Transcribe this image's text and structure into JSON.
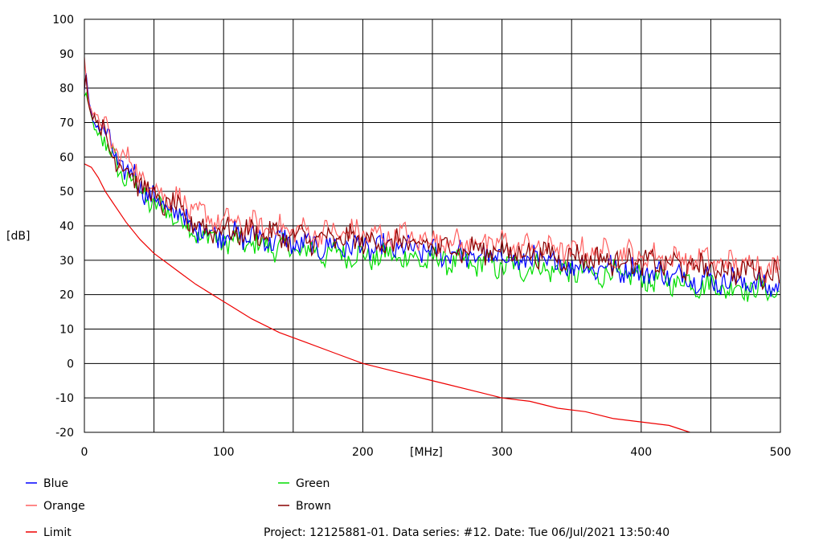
{
  "chart_data": {
    "type": "line",
    "title": "",
    "xlabel": "[MHz]",
    "ylabel": "[dB]",
    "xlim": [
      0,
      500
    ],
    "ylim": [
      -20,
      100
    ],
    "x_ticks": [
      "0",
      "100",
      "200",
      "300",
      "400",
      "500"
    ],
    "y_ticks": [
      "100",
      "90",
      "80",
      "70",
      "60",
      "50",
      "40",
      "30",
      "20",
      "10",
      "0",
      "-10",
      "-20"
    ],
    "grid": true,
    "legend_position": "bottom-left",
    "footer": "Project: 12125881-01. Data series: #12. Date: Tue 06/Jul/2021 13:50:40",
    "series": [
      {
        "name": "Blue",
        "color": "#0000ff",
        "x": [
          0,
          1,
          3,
          6,
          10,
          15,
          20,
          25,
          30,
          35,
          40,
          45,
          50,
          55,
          60,
          65,
          70,
          75,
          80,
          85,
          90,
          95,
          100,
          110,
          120,
          130,
          140,
          150,
          160,
          170,
          180,
          190,
          200,
          210,
          220,
          230,
          240,
          250,
          260,
          270,
          280,
          290,
          300,
          310,
          320,
          330,
          340,
          350,
          360,
          370,
          380,
          390,
          400,
          410,
          420,
          430,
          440,
          450,
          460,
          470,
          480,
          490,
          500
        ],
        "y": [
          79,
          84,
          76,
          72,
          70,
          66,
          62,
          58,
          56,
          55,
          52,
          50,
          48,
          46,
          45,
          44,
          43,
          40,
          39,
          39,
          38,
          38,
          38,
          37,
          37,
          36,
          36,
          35,
          34,
          34,
          34,
          34,
          34,
          33,
          34,
          33,
          33,
          32,
          32,
          32,
          31,
          31,
          31,
          30,
          30,
          30,
          29,
          29,
          28,
          28,
          28,
          27,
          27,
          26,
          26,
          25,
          25,
          24,
          24,
          24,
          23,
          23,
          22
        ]
      },
      {
        "name": "Orange",
        "color": "#ff6060",
        "x": [
          0,
          1,
          3,
          6,
          10,
          15,
          20,
          25,
          30,
          35,
          40,
          45,
          50,
          55,
          60,
          65,
          70,
          75,
          80,
          85,
          90,
          95,
          100,
          110,
          120,
          130,
          140,
          150,
          160,
          170,
          180,
          190,
          200,
          210,
          220,
          230,
          240,
          250,
          260,
          270,
          280,
          290,
          300,
          310,
          320,
          330,
          340,
          350,
          360,
          370,
          380,
          390,
          400,
          410,
          420,
          430,
          440,
          450,
          460,
          470,
          480,
          490,
          500
        ],
        "y": [
          88,
          85,
          78,
          74,
          71,
          68,
          64,
          61,
          59,
          58,
          55,
          53,
          51,
          50,
          49,
          48,
          47,
          45,
          44,
          43,
          42,
          42,
          41,
          41,
          40,
          40,
          39,
          39,
          38,
          38,
          38,
          38,
          38,
          37,
          37,
          37,
          36,
          36,
          36,
          35,
          35,
          35,
          35,
          34,
          34,
          34,
          33,
          33,
          33,
          32,
          32,
          32,
          31,
          31,
          31,
          30,
          30,
          30,
          29,
          29,
          29,
          28,
          28
        ]
      },
      {
        "name": "Green",
        "color": "#00dd00",
        "x": [
          0,
          1,
          3,
          6,
          10,
          15,
          20,
          25,
          30,
          35,
          40,
          45,
          50,
          55,
          60,
          65,
          70,
          75,
          80,
          85,
          90,
          95,
          100,
          110,
          120,
          130,
          140,
          150,
          160,
          170,
          180,
          190,
          200,
          210,
          220,
          230,
          240,
          250,
          260,
          270,
          280,
          290,
          300,
          310,
          320,
          330,
          340,
          350,
          360,
          370,
          380,
          390,
          400,
          410,
          420,
          430,
          440,
          450,
          460,
          470,
          480,
          490,
          500
        ],
        "y": [
          76,
          78,
          73,
          70,
          67,
          64,
          60,
          56,
          54,
          53,
          50,
          48,
          46,
          45,
          44,
          43,
          42,
          39,
          38,
          37,
          37,
          36,
          36,
          35,
          35,
          34,
          34,
          33,
          33,
          32,
          32,
          32,
          31,
          31,
          31,
          31,
          30,
          30,
          30,
          29,
          29,
          29,
          28,
          28,
          28,
          28,
          27,
          27,
          26,
          26,
          26,
          25,
          25,
          24,
          24,
          24,
          23,
          23,
          22,
          22,
          22,
          21,
          21
        ]
      },
      {
        "name": "Brown",
        "color": "#880000",
        "x": [
          0,
          1,
          3,
          6,
          10,
          15,
          20,
          25,
          30,
          35,
          40,
          45,
          50,
          55,
          60,
          65,
          70,
          75,
          80,
          85,
          90,
          95,
          100,
          110,
          120,
          130,
          140,
          150,
          160,
          170,
          180,
          190,
          200,
          210,
          220,
          230,
          240,
          250,
          260,
          270,
          280,
          290,
          300,
          310,
          320,
          330,
          340,
          350,
          360,
          370,
          380,
          390,
          400,
          410,
          420,
          430,
          440,
          450,
          460,
          470,
          480,
          490,
          500
        ],
        "y": [
          82,
          86,
          76,
          72,
          69,
          66,
          62,
          58,
          56,
          55,
          52,
          50,
          48,
          47,
          46,
          45,
          44,
          41,
          40,
          40,
          39,
          39,
          39,
          38,
          38,
          38,
          37,
          37,
          36,
          36,
          36,
          36,
          36,
          35,
          35,
          35,
          34,
          34,
          34,
          33,
          33,
          33,
          33,
          32,
          32,
          32,
          31,
          31,
          31,
          30,
          30,
          30,
          29,
          29,
          29,
          28,
          28,
          28,
          27,
          27,
          27,
          26,
          26
        ]
      },
      {
        "name": "Limit",
        "color": "#ee0000",
        "x": [
          0,
          5,
          10,
          15,
          20,
          30,
          40,
          50,
          60,
          70,
          80,
          100,
          120,
          140,
          160,
          180,
          200,
          220,
          240,
          260,
          280,
          300,
          320,
          340,
          360,
          380,
          400,
          420,
          435
        ],
        "y": [
          58,
          57,
          54,
          50,
          47,
          41,
          36,
          32,
          29,
          26,
          23,
          18,
          13,
          9,
          6,
          3,
          0,
          -2,
          -4,
          -6,
          -8,
          -10,
          -11,
          -13,
          -14,
          -16,
          -17,
          -18,
          -20
        ]
      }
    ]
  }
}
